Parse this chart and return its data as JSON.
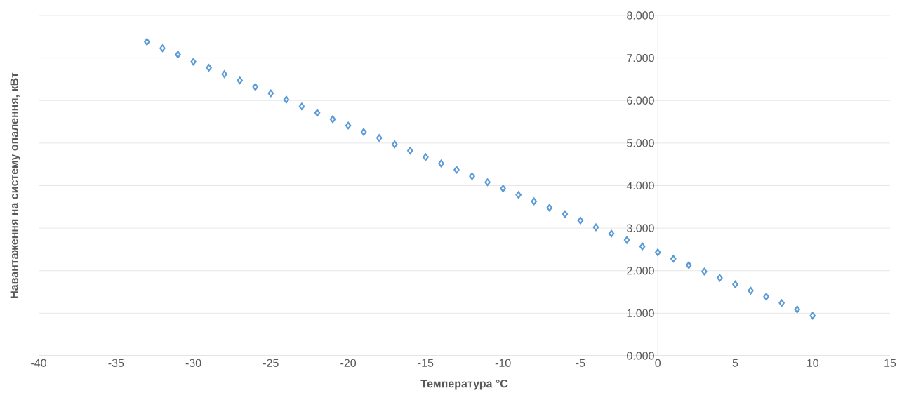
{
  "chart_data": {
    "type": "scatter",
    "xlabel": "Температура °C",
    "ylabel": "Навантаження на систему опалення, кВт",
    "x": [
      -33,
      -32,
      -31,
      -30,
      -29,
      -28,
      -27,
      -26,
      -25,
      -24,
      -23,
      -22,
      -21,
      -20,
      -19,
      -18,
      -17,
      -16,
      -15,
      -14,
      -13,
      -12,
      -11,
      -10,
      -9,
      -8,
      -7,
      -6,
      -5,
      -4,
      -3,
      -2,
      -1,
      0,
      1,
      2,
      3,
      4,
      5,
      6,
      7,
      8,
      9,
      10
    ],
    "series": [
      {
        "color": "#5b9bd5",
        "values": [
          7.38,
          7.23,
          7.08,
          6.91,
          6.77,
          6.62,
          6.47,
          6.32,
          6.17,
          6.02,
          5.86,
          5.71,
          5.56,
          5.41,
          5.26,
          5.12,
          4.97,
          4.82,
          4.67,
          4.52,
          4.37,
          4.22,
          4.08,
          3.93,
          3.78,
          3.63,
          3.48,
          3.33,
          3.18,
          3.02,
          2.87,
          2.72,
          2.57,
          2.43,
          2.28,
          2.13,
          1.98,
          1.83,
          1.68,
          1.53,
          1.39,
          1.24,
          1.09,
          0.94
        ]
      }
    ],
    "xlim": [
      -40,
      15
    ],
    "xticks": [
      -40,
      -35,
      -30,
      -25,
      -20,
      -15,
      -10,
      -5,
      0,
      5,
      10,
      15
    ],
    "ylim": [
      0,
      8
    ],
    "yticks": [
      {
        "value": 0,
        "label": "0.000"
      },
      {
        "value": 1,
        "label": "1.000"
      },
      {
        "value": 2,
        "label": "2.000"
      },
      {
        "value": 3,
        "label": "3.000"
      },
      {
        "value": 4,
        "label": "4.000"
      },
      {
        "value": 5,
        "label": "5.000"
      },
      {
        "value": 6,
        "label": "6.000"
      },
      {
        "value": 7,
        "label": "7.000"
      },
      {
        "value": 8,
        "label": "8.000"
      }
    ],
    "grid": "y",
    "marker": "diamond"
  }
}
